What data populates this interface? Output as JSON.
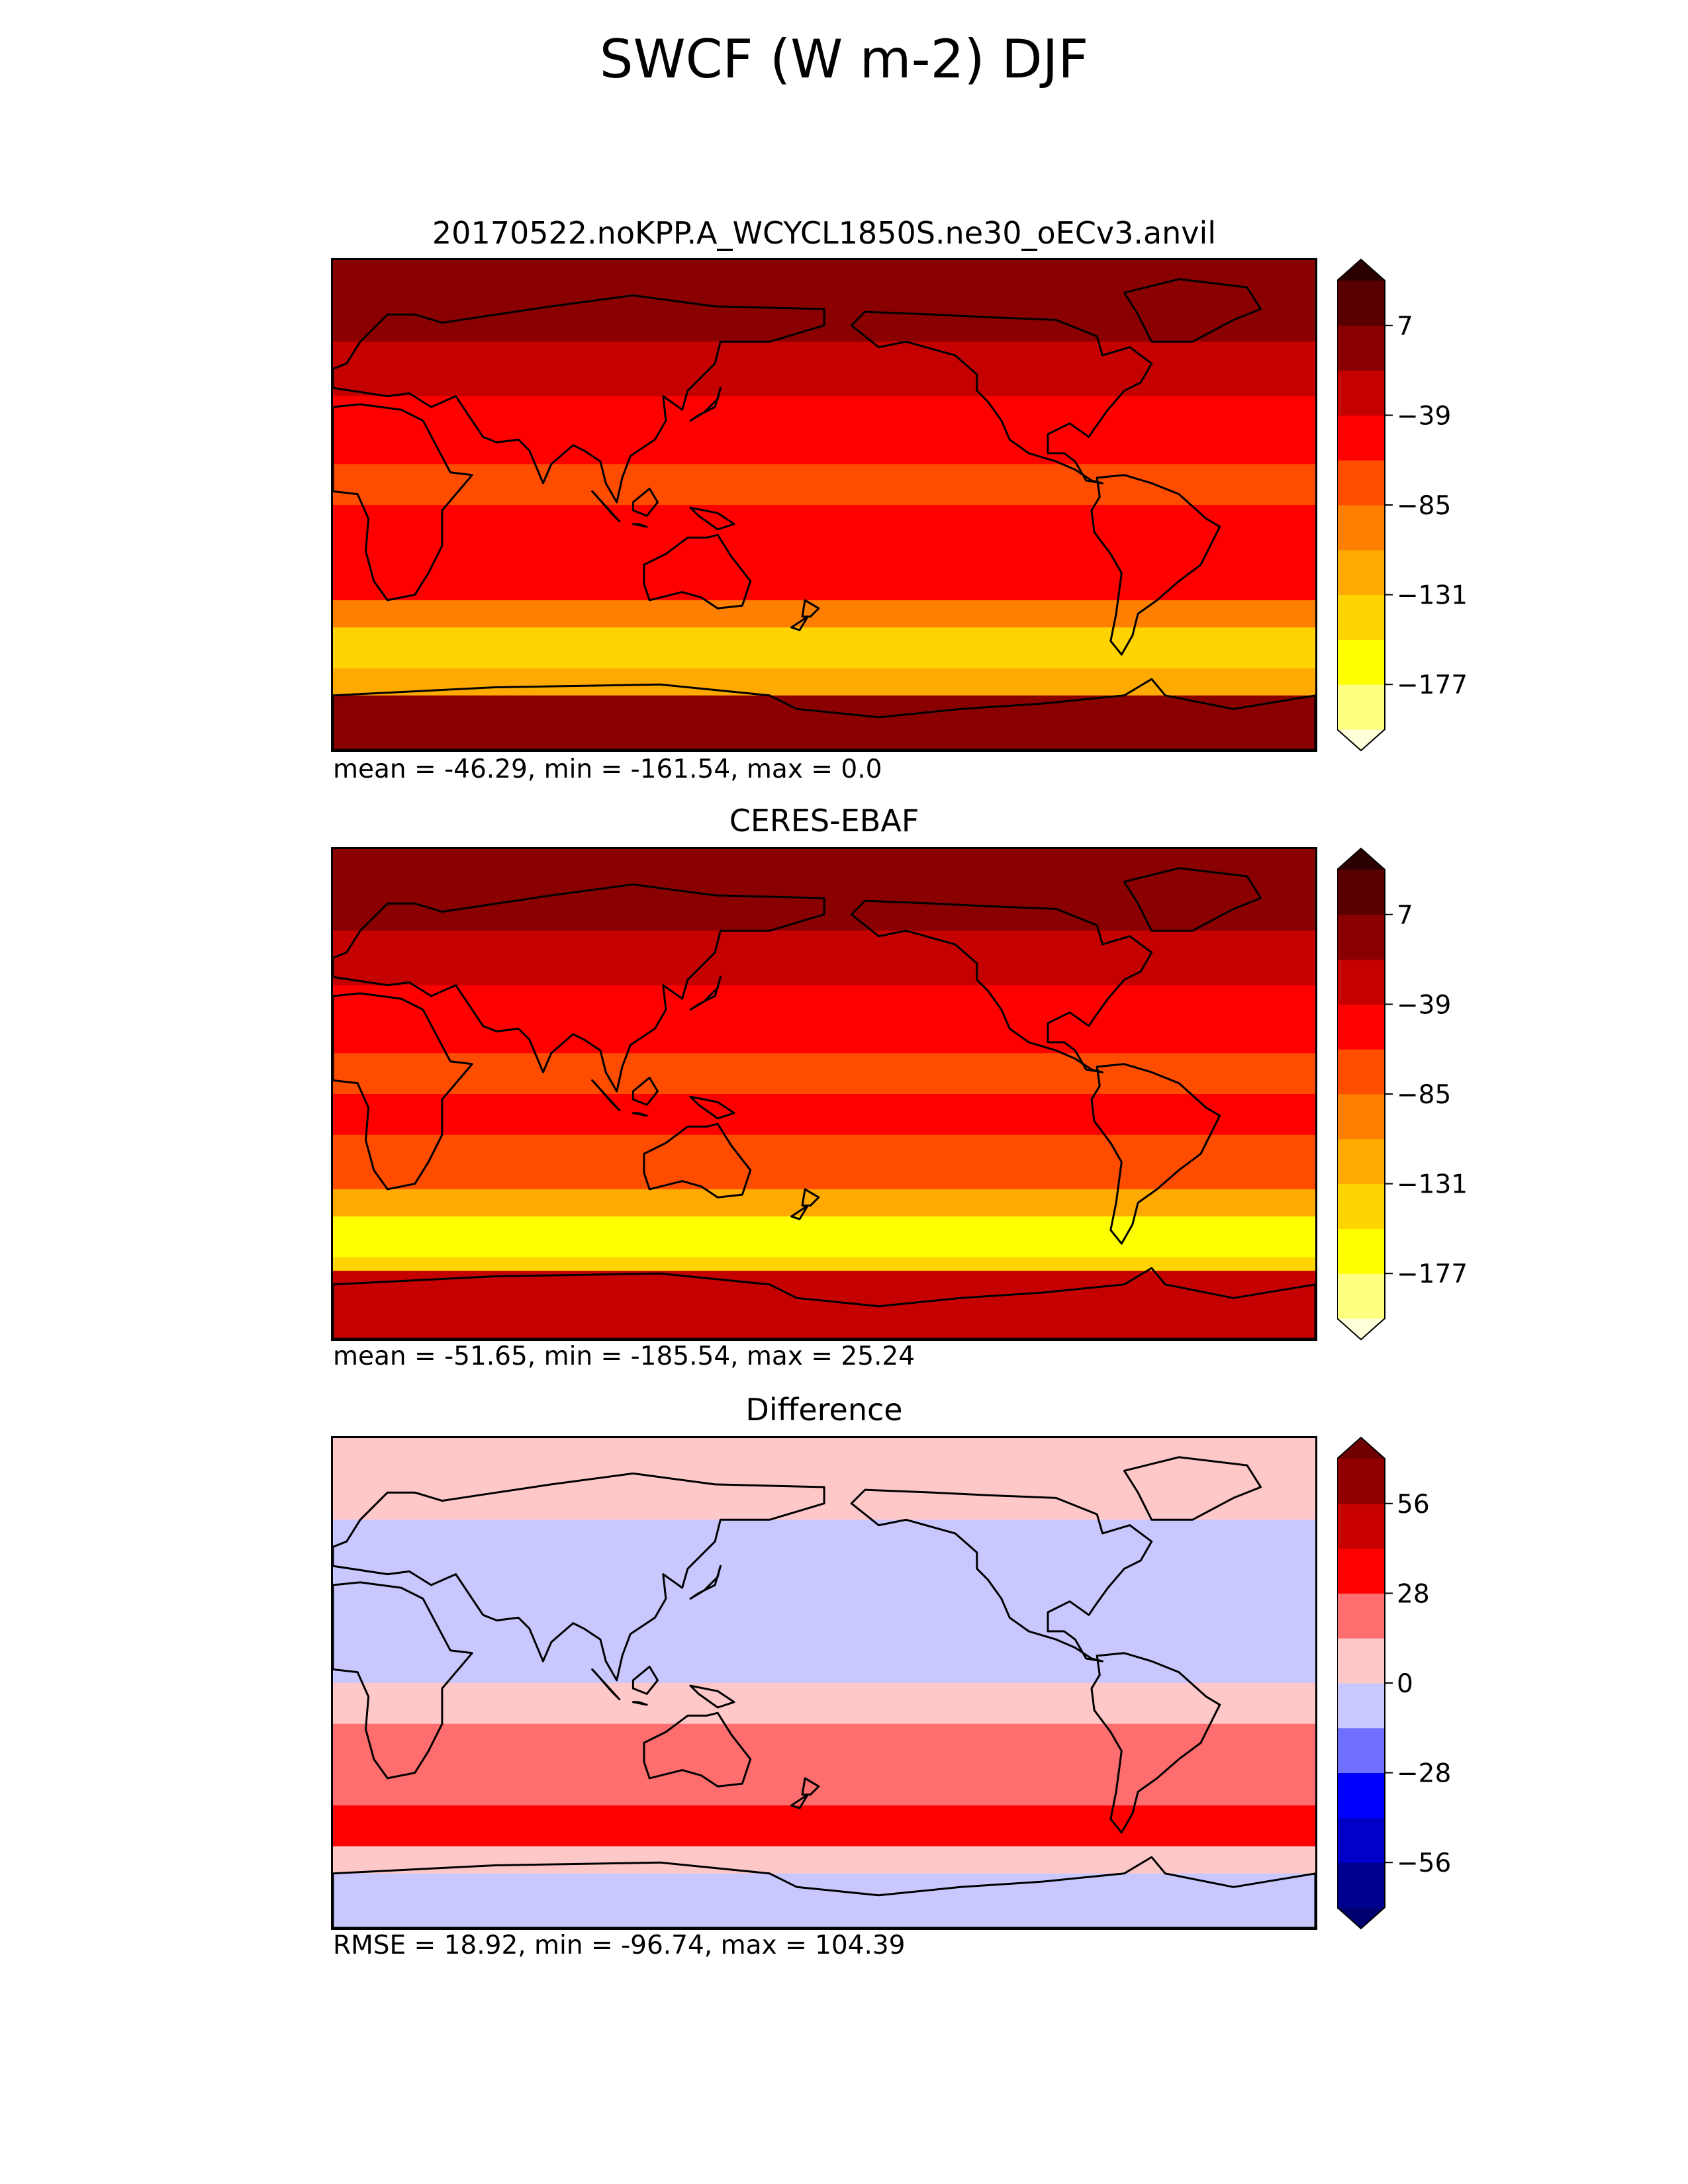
{
  "figure": {
    "title": "SWCF (W m-2) DJF"
  },
  "chart_data": [
    {
      "type": "heatmap",
      "title": "20170522.noKPP.A_WCYCL1850S.ne30_oECv3.anvil",
      "stats": "mean = -46.29, min = -161.54, max = 0.0",
      "colorbar": {
        "ticks": [
          "7",
          "−39",
          "−85",
          "−131",
          "−177"
        ],
        "tick_values": [
          7,
          -39,
          -85,
          -131,
          -177
        ],
        "levels": [
          -200,
          -177,
          -154,
          -131,
          -108,
          -85,
          -62,
          -39,
          -16,
          7,
          30
        ],
        "extend": "both",
        "colors": [
          "#ffffd9",
          "#ffff80",
          "#ffff00",
          "#ffd400",
          "#ffaa00",
          "#ff7f00",
          "#ff4d00",
          "#ff0000",
          "#c40000",
          "#8a0000",
          "#580000",
          "#2b0000"
        ]
      },
      "latitude_bands": [
        {
          "lat": [
            60,
            90
          ],
          "value": 0
        },
        {
          "lat": [
            40,
            60
          ],
          "value": -30
        },
        {
          "lat": [
            15,
            40
          ],
          "value": -62
        },
        {
          "lat": [
            0,
            15
          ],
          "value": -75
        },
        {
          "lat": [
            -15,
            0
          ],
          "value": -60
        },
        {
          "lat": [
            -35,
            -15
          ],
          "value": -55
        },
        {
          "lat": [
            -45,
            -35
          ],
          "value": -100
        },
        {
          "lat": [
            -60,
            -45
          ],
          "value": -140
        },
        {
          "lat": [
            -70,
            -60
          ],
          "value": -110
        },
        {
          "lat": [
            -90,
            -70
          ],
          "value": 0
        }
      ]
    },
    {
      "type": "heatmap",
      "title": "CERES-EBAF",
      "stats": "mean = -51.65, min = -185.54, max = 25.24",
      "colorbar": {
        "ticks": [
          "7",
          "−39",
          "−85",
          "−131",
          "−177"
        ],
        "tick_values": [
          7,
          -39,
          -85,
          -131,
          -177
        ],
        "levels": [
          -200,
          -177,
          -154,
          -131,
          -108,
          -85,
          -62,
          -39,
          -16,
          7,
          30
        ],
        "extend": "both",
        "colors": [
          "#ffffd9",
          "#ffff80",
          "#ffff00",
          "#ffd400",
          "#ffaa00",
          "#ff7f00",
          "#ff4d00",
          "#ff0000",
          "#c40000",
          "#8a0000",
          "#580000",
          "#2b0000"
        ]
      },
      "latitude_bands": [
        {
          "lat": [
            60,
            90
          ],
          "value": 0
        },
        {
          "lat": [
            40,
            60
          ],
          "value": -35
        },
        {
          "lat": [
            15,
            40
          ],
          "value": -55
        },
        {
          "lat": [
            0,
            15
          ],
          "value": -65
        },
        {
          "lat": [
            -15,
            0
          ],
          "value": -62
        },
        {
          "lat": [
            -35,
            -15
          ],
          "value": -70
        },
        {
          "lat": [
            -45,
            -35
          ],
          "value": -110
        },
        {
          "lat": [
            -60,
            -45
          ],
          "value": -160
        },
        {
          "lat": [
            -65,
            -60
          ],
          "value": -140
        },
        {
          "lat": [
            -90,
            -65
          ],
          "value": -20
        }
      ]
    },
    {
      "type": "heatmap",
      "title": "Difference",
      "stats": "RMSE = 18.92, min = -96.74, max = 104.39",
      "colorbar": {
        "ticks": [
          "56",
          "28",
          "0",
          "−28",
          "−56"
        ],
        "tick_values": [
          56,
          28,
          0,
          -28,
          -56
        ],
        "levels": [
          -70,
          -56,
          -42,
          -28,
          -14,
          0,
          14,
          28,
          42,
          56,
          70
        ],
        "extend": "both",
        "colors": [
          "#000070",
          "#000090",
          "#0000c8",
          "#0000ff",
          "#6e6eff",
          "#c8c8ff",
          "#ffc8c8",
          "#ff6e6e",
          "#ff0000",
          "#c80000",
          "#900000",
          "#700000"
        ]
      },
      "latitude_bands": [
        {
          "lat": [
            60,
            90
          ],
          "value": 5
        },
        {
          "lat": [
            40,
            60
          ],
          "value": -5
        },
        {
          "lat": [
            15,
            40
          ],
          "value": -8
        },
        {
          "lat": [
            0,
            15
          ],
          "value": -10
        },
        {
          "lat": [
            -15,
            0
          ],
          "value": 5
        },
        {
          "lat": [
            -35,
            -15
          ],
          "value": 15
        },
        {
          "lat": [
            -45,
            -35
          ],
          "value": 15
        },
        {
          "lat": [
            -60,
            -45
          ],
          "value": 30
        },
        {
          "lat": [
            -70,
            -60
          ],
          "value": 10
        },
        {
          "lat": [
            -90,
            -70
          ],
          "value": -10
        }
      ]
    }
  ]
}
